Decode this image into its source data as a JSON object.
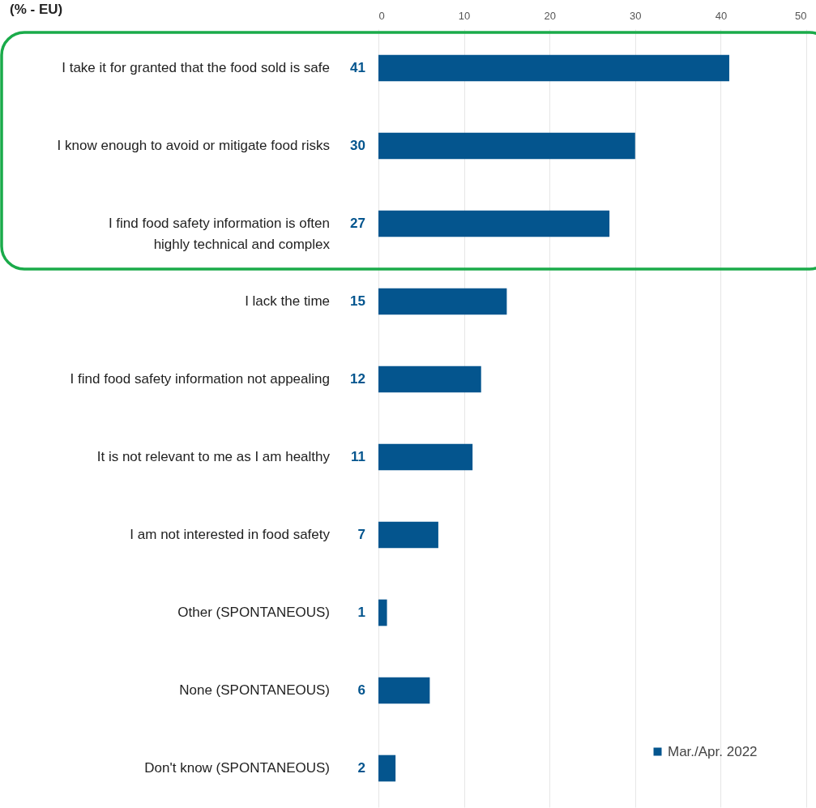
{
  "chart_data": {
    "type": "bar",
    "orientation": "horizontal",
    "title": "(% - EU)",
    "categories": [
      "I take it for granted that the food sold is safe",
      "I know enough to avoid or mitigate food risks",
      "I find food safety information is often highly technical and complex",
      "I lack the time",
      "I find food safety information not appealing",
      "It is not relevant to me as I am healthy",
      "I am not interested in food safety",
      "Other (SPONTANEOUS)",
      "None (SPONTANEOUS)",
      "Don't know (SPONTANEOUS)"
    ],
    "series": [
      {
        "name": "Mar./Apr. 2022",
        "color": "#04558e",
        "values": [
          41,
          30,
          27,
          15,
          12,
          11,
          7,
          1,
          6,
          2
        ]
      }
    ],
    "xlim": [
      0,
      50
    ],
    "xticks": [
      0,
      10,
      20,
      30,
      40,
      50
    ],
    "grid": "x",
    "data_labels": true,
    "legend": "bottom right"
  }
}
